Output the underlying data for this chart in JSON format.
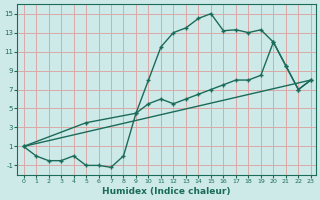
{
  "xlabel": "Humidex (Indice chaleur)",
  "bg_color": "#ceeae8",
  "grid_color": "#dba8a8",
  "line_color": "#1a6b5a",
  "xlim": [
    -0.5,
    23.4
  ],
  "ylim": [
    -2.0,
    16.0
  ],
  "xticks": [
    0,
    1,
    2,
    3,
    4,
    5,
    6,
    7,
    8,
    9,
    10,
    11,
    12,
    13,
    14,
    15,
    16,
    17,
    18,
    19,
    20,
    21,
    22,
    23
  ],
  "yticks": [
    -1,
    1,
    3,
    5,
    7,
    9,
    11,
    13,
    15
  ],
  "series1_x": [
    0,
    1,
    2,
    3,
    4,
    5,
    6,
    7,
    8,
    9,
    10,
    11,
    12,
    13,
    14,
    15,
    16,
    17,
    18,
    19,
    20,
    21,
    22,
    23
  ],
  "series1_y": [
    1,
    0,
    -0.5,
    -0.5,
    0,
    -1,
    -1,
    -1.2,
    0,
    4.5,
    8,
    11.5,
    13,
    13.5,
    14.5,
    15,
    13.2,
    13.3,
    13,
    13.3,
    12,
    9.5,
    7,
    8
  ],
  "series2_x": [
    0,
    5,
    9,
    10,
    11,
    12,
    13,
    14,
    15,
    16,
    17,
    18,
    19,
    20,
    21,
    22,
    23
  ],
  "series2_y": [
    1,
    3.5,
    4.5,
    5.5,
    6,
    5.5,
    6,
    6.5,
    7,
    7.5,
    8,
    8,
    8.5,
    12,
    9.5,
    7,
    8
  ],
  "series3_x": [
    0,
    23
  ],
  "series3_y": [
    1,
    8
  ]
}
